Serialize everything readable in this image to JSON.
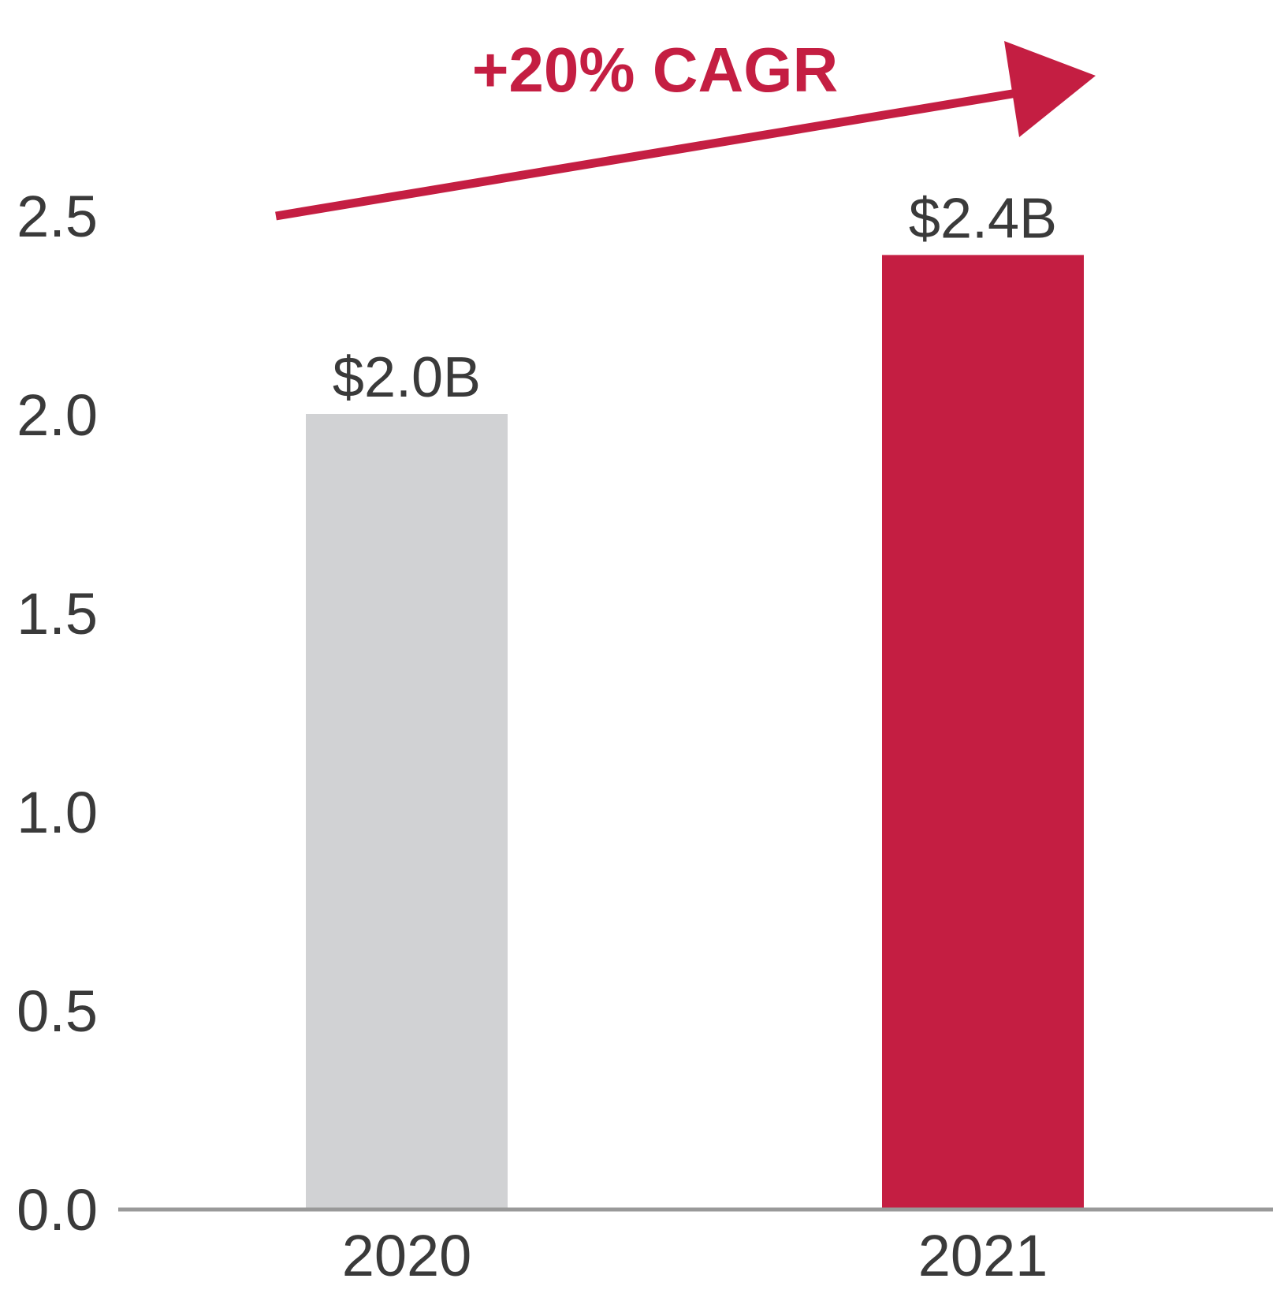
{
  "chart_data": {
    "type": "bar",
    "categories": [
      "2020",
      "2021"
    ],
    "values": [
      2.0,
      2.4
    ],
    "data_labels": [
      "$2.0B",
      "$2.4B"
    ],
    "yticks": [
      "0.0",
      "0.5",
      "1.0",
      "1.5",
      "2.0",
      "2.5"
    ],
    "ylim": [
      0,
      2.5
    ],
    "grid": false,
    "annotation": "+20% CAGR",
    "bar_colors": [
      "#d1d2d4",
      "#c41e42"
    ],
    "accent_color": "#c41e42",
    "axis_color": "#999999"
  }
}
